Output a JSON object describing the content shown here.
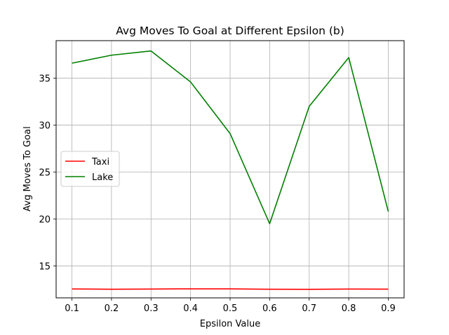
{
  "chart_data": {
    "type": "line",
    "title": "Avg Moves To Goal at Different Epsilon (b)",
    "xlabel": "Epsilon Value",
    "ylabel": "Avg Moves To Goal",
    "x": [
      0.1,
      0.2,
      0.3,
      0.4,
      0.5,
      0.6,
      0.7,
      0.8,
      0.9
    ],
    "x_tick_labels": [
      "0.1",
      "0.2",
      "0.3",
      "0.4",
      "0.5",
      "0.6",
      "0.7",
      "0.8",
      "0.9"
    ],
    "y_ticks": [
      15,
      20,
      25,
      30,
      35
    ],
    "y_tick_labels": [
      "15",
      "20",
      "25",
      "30",
      "35"
    ],
    "xlim": [
      0.06,
      0.94
    ],
    "ylim": [
      11.6,
      39.0
    ],
    "grid": true,
    "legend_position": "center-left",
    "series": [
      {
        "name": "Taxi",
        "color": "#ff0000",
        "values": [
          12.55,
          12.52,
          12.54,
          12.56,
          12.56,
          12.52,
          12.51,
          12.54,
          12.53
        ]
      },
      {
        "name": "Lake",
        "color": "#008000",
        "values": [
          36.6,
          37.45,
          37.9,
          34.6,
          29.1,
          19.5,
          32.0,
          37.2,
          20.8
        ]
      }
    ]
  }
}
